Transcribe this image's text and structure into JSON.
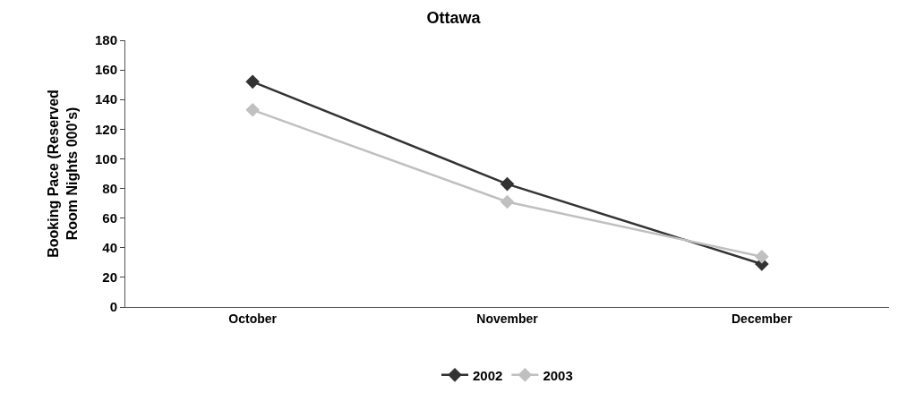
{
  "chart_data": {
    "type": "line",
    "title": "Ottawa",
    "ylabel": "Booking Pace (Reserved\nRoom Nights 000's)",
    "categories": [
      "October",
      "November",
      "December"
    ],
    "series": [
      {
        "name": "2002",
        "color": "#333333",
        "values": [
          152,
          83,
          29
        ]
      },
      {
        "name": "2003",
        "color": "#c0c0c0",
        "values": [
          133,
          71,
          34
        ]
      }
    ],
    "ylim": [
      0,
      180
    ],
    "yticks": [
      0,
      20,
      40,
      60,
      80,
      100,
      120,
      140,
      160,
      180
    ],
    "legend": "bottom",
    "marker": "diamond",
    "line_style": "solid"
  }
}
